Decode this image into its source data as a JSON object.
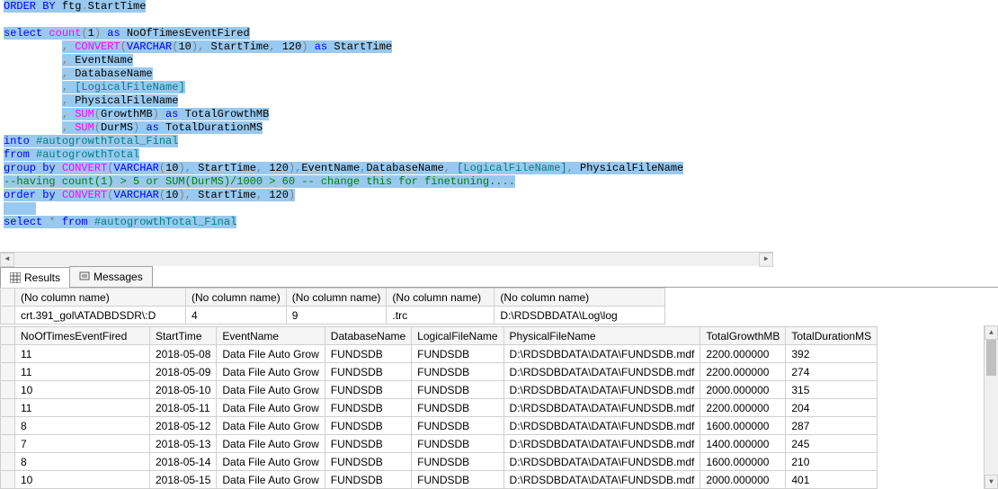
{
  "editor": {
    "lines": [
      {
        "segs": [
          {
            "t": "ORDER",
            "c": "kw-blue",
            "s": true
          },
          {
            "t": " ",
            "s": true
          },
          {
            "t": "BY",
            "c": "kw-blue",
            "s": true
          },
          {
            "t": " ftg",
            "s": true
          },
          {
            "t": ".",
            "c": "kw-gray",
            "s": true
          },
          {
            "t": "StartTime",
            "s": true
          }
        ]
      },
      {
        "segs": []
      },
      {
        "segs": [
          {
            "t": "select",
            "c": "kw-blue",
            "s": true
          },
          {
            "t": " ",
            "s": true
          },
          {
            "t": "count",
            "c": "kw-mag",
            "s": true
          },
          {
            "t": "(",
            "c": "kw-gray",
            "s": true
          },
          {
            "t": "1",
            "s": true
          },
          {
            "t": ")",
            "c": "kw-gray",
            "s": true
          },
          {
            "t": " ",
            "s": true
          },
          {
            "t": "as",
            "c": "kw-blue",
            "s": true
          },
          {
            "t": " NoOfTimesEventFired",
            "s": true
          }
        ]
      },
      {
        "segs": [
          {
            "t": "         ",
            "s": false
          },
          {
            "t": ",",
            "c": "kw-gray",
            "s": true
          },
          {
            "t": " ",
            "s": true
          },
          {
            "t": "CONVERT",
            "c": "kw-mag",
            "s": true
          },
          {
            "t": "(",
            "c": "kw-gray",
            "s": true
          },
          {
            "t": "VARCHAR",
            "c": "kw-blue",
            "s": true
          },
          {
            "t": "(",
            "c": "kw-gray",
            "s": true
          },
          {
            "t": "10",
            "s": true
          },
          {
            "t": "),",
            "c": "kw-gray",
            "s": true
          },
          {
            "t": " StartTime",
            "s": true
          },
          {
            "t": ",",
            "c": "kw-gray",
            "s": true
          },
          {
            "t": " 120",
            "s": true
          },
          {
            "t": ")",
            "c": "kw-gray",
            "s": true
          },
          {
            "t": " ",
            "s": true
          },
          {
            "t": "as",
            "c": "kw-blue",
            "s": true
          },
          {
            "t": " StartTime",
            "s": true
          }
        ]
      },
      {
        "segs": [
          {
            "t": "         ",
            "s": false
          },
          {
            "t": ",",
            "c": "kw-gray",
            "s": true
          },
          {
            "t": " EventName",
            "s": true
          }
        ]
      },
      {
        "segs": [
          {
            "t": "         ",
            "s": false
          },
          {
            "t": ",",
            "c": "kw-gray",
            "s": true
          },
          {
            "t": " DatabaseName",
            "s": true
          }
        ]
      },
      {
        "segs": [
          {
            "t": "         ",
            "s": false
          },
          {
            "t": ",",
            "c": "kw-gray",
            "s": true
          },
          {
            "t": " ",
            "s": true
          },
          {
            "t": "[LogicalFileName]",
            "c": "kw-teal",
            "s": true
          }
        ]
      },
      {
        "segs": [
          {
            "t": "         ",
            "s": false
          },
          {
            "t": ",",
            "c": "kw-gray",
            "s": true
          },
          {
            "t": " PhysicalFileName",
            "s": true
          }
        ]
      },
      {
        "segs": [
          {
            "t": "         ",
            "s": false
          },
          {
            "t": ",",
            "c": "kw-gray",
            "s": true
          },
          {
            "t": " ",
            "s": true
          },
          {
            "t": "SUM",
            "c": "kw-mag",
            "s": true
          },
          {
            "t": "(",
            "c": "kw-gray",
            "s": true
          },
          {
            "t": "GrowthMB",
            "s": true
          },
          {
            "t": ")",
            "c": "kw-gray",
            "s": true
          },
          {
            "t": " ",
            "s": true
          },
          {
            "t": "as",
            "c": "kw-blue",
            "s": true
          },
          {
            "t": " TotalGrowthMB",
            "s": true
          }
        ]
      },
      {
        "segs": [
          {
            "t": "         ",
            "s": false
          },
          {
            "t": ",",
            "c": "kw-gray",
            "s": true
          },
          {
            "t": " ",
            "s": true
          },
          {
            "t": "SUM",
            "c": "kw-mag",
            "s": true
          },
          {
            "t": "(",
            "c": "kw-gray",
            "s": true
          },
          {
            "t": "DurMS",
            "s": true
          },
          {
            "t": ")",
            "c": "kw-gray",
            "s": true
          },
          {
            "t": " ",
            "s": true
          },
          {
            "t": "as",
            "c": "kw-blue",
            "s": true
          },
          {
            "t": " TotalDurationMS",
            "s": true
          }
        ]
      },
      {
        "segs": [
          {
            "t": "into",
            "c": "kw-blue",
            "s": true
          },
          {
            "t": " ",
            "s": true
          },
          {
            "t": "#autogrowthTotal_Final",
            "c": "kw-teal",
            "s": true
          }
        ]
      },
      {
        "segs": [
          {
            "t": "from",
            "c": "kw-blue",
            "s": true
          },
          {
            "t": " ",
            "s": true
          },
          {
            "t": "#autogrowthTotal",
            "c": "kw-teal",
            "s": true
          }
        ]
      },
      {
        "segs": [
          {
            "t": "group",
            "c": "kw-blue",
            "s": true
          },
          {
            "t": " ",
            "s": true
          },
          {
            "t": "by",
            "c": "kw-blue",
            "s": true
          },
          {
            "t": " ",
            "s": true
          },
          {
            "t": "CONVERT",
            "c": "kw-mag",
            "s": true
          },
          {
            "t": "(",
            "c": "kw-gray",
            "s": true
          },
          {
            "t": "VARCHAR",
            "c": "kw-blue",
            "s": true
          },
          {
            "t": "(",
            "c": "kw-gray",
            "s": true
          },
          {
            "t": "10",
            "s": true
          },
          {
            "t": "),",
            "c": "kw-gray",
            "s": true
          },
          {
            "t": " StartTime",
            "s": true
          },
          {
            "t": ",",
            "c": "kw-gray",
            "s": true
          },
          {
            "t": " 120",
            "s": true
          },
          {
            "t": "),",
            "c": "kw-gray",
            "s": true
          },
          {
            "t": "EventName",
            "s": true
          },
          {
            "t": ",",
            "c": "kw-gray",
            "s": true
          },
          {
            "t": "DatabaseName",
            "s": true
          },
          {
            "t": ",",
            "c": "kw-gray",
            "s": true
          },
          {
            "t": " ",
            "s": true
          },
          {
            "t": "[LogicalFileName]",
            "c": "kw-teal",
            "s": true
          },
          {
            "t": ",",
            "c": "kw-gray",
            "s": true
          },
          {
            "t": " PhysicalFileName",
            "s": true
          }
        ]
      },
      {
        "segs": [
          {
            "t": "--having count(1) > 5 or SUM(DurMS)/1000 > 60 -- change this for finetuning....",
            "c": "kw-green",
            "s": true
          }
        ]
      },
      {
        "segs": [
          {
            "t": "order",
            "c": "kw-blue",
            "s": true
          },
          {
            "t": " ",
            "s": true
          },
          {
            "t": "by",
            "c": "kw-blue",
            "s": true
          },
          {
            "t": " ",
            "s": true
          },
          {
            "t": "CONVERT",
            "c": "kw-mag",
            "s": true
          },
          {
            "t": "(",
            "c": "kw-gray",
            "s": true
          },
          {
            "t": "VARCHAR",
            "c": "kw-blue",
            "s": true
          },
          {
            "t": "(",
            "c": "kw-gray",
            "s": true
          },
          {
            "t": "10",
            "s": true
          },
          {
            "t": "),",
            "c": "kw-gray",
            "s": true
          },
          {
            "t": " StartTime",
            "s": true
          },
          {
            "t": ",",
            "c": "kw-gray",
            "s": true
          },
          {
            "t": " 120",
            "s": true
          },
          {
            "t": ")",
            "c": "kw-gray",
            "s": true
          }
        ]
      },
      {
        "segs": [
          {
            "t": "     ",
            "s": true
          }
        ]
      },
      {
        "segs": [
          {
            "t": "select",
            "c": "kw-blue",
            "s": true
          },
          {
            "t": " ",
            "s": true
          },
          {
            "t": "*",
            "c": "kw-gray",
            "s": true
          },
          {
            "t": " ",
            "s": true
          },
          {
            "t": "from",
            "c": "kw-blue",
            "s": true
          },
          {
            "t": " ",
            "s": true
          },
          {
            "t": "#autogrowthTotal_Final",
            "c": "kw-teal",
            "s": true
          }
        ]
      }
    ]
  },
  "tabs": {
    "results": "Results",
    "messages": "Messages"
  },
  "grid1": {
    "headers": [
      "(No column name)",
      "(No column name)",
      "(No column name)",
      "(No column name)",
      "(No column name)"
    ],
    "widths": [
      190,
      100,
      70,
      120,
      190
    ],
    "row": [
      "crt.391_gol\\ATADBDSDR\\:D",
      "4",
      "9",
      ".trc",
      "D:\\RDSDBDATA\\Log\\log"
    ]
  },
  "grid2": {
    "headers": [
      "NoOfTimesEventFired",
      "StartTime",
      "EventName",
      "DatabaseName",
      "LogicalFileName",
      "PhysicalFileName",
      "TotalGrowthMB",
      "TotalDurationMS"
    ],
    "widths": [
      150,
      70,
      110,
      90,
      100,
      190,
      90,
      95
    ],
    "rows": [
      [
        "11",
        "2018-05-08",
        "Data File Auto Grow",
        "FUNDSDB",
        "FUNDSDB",
        "D:\\RDSDBDATA\\DATA\\FUNDSDB.mdf",
        "2200.000000",
        "392"
      ],
      [
        "11",
        "2018-05-09",
        "Data File Auto Grow",
        "FUNDSDB",
        "FUNDSDB",
        "D:\\RDSDBDATA\\DATA\\FUNDSDB.mdf",
        "2200.000000",
        "274"
      ],
      [
        "10",
        "2018-05-10",
        "Data File Auto Grow",
        "FUNDSDB",
        "FUNDSDB",
        "D:\\RDSDBDATA\\DATA\\FUNDSDB.mdf",
        "2000.000000",
        "315"
      ],
      [
        "11",
        "2018-05-11",
        "Data File Auto Grow",
        "FUNDSDB",
        "FUNDSDB",
        "D:\\RDSDBDATA\\DATA\\FUNDSDB.mdf",
        "2200.000000",
        "204"
      ],
      [
        "8",
        "2018-05-12",
        "Data File Auto Grow",
        "FUNDSDB",
        "FUNDSDB",
        "D:\\RDSDBDATA\\DATA\\FUNDSDB.mdf",
        "1600.000000",
        "287"
      ],
      [
        "7",
        "2018-05-13",
        "Data File Auto Grow",
        "FUNDSDB",
        "FUNDSDB",
        "D:\\RDSDBDATA\\DATA\\FUNDSDB.mdf",
        "1400.000000",
        "245"
      ],
      [
        "8",
        "2018-05-14",
        "Data File Auto Grow",
        "FUNDSDB",
        "FUNDSDB",
        "D:\\RDSDBDATA\\DATA\\FUNDSDB.mdf",
        "1600.000000",
        "210"
      ],
      [
        "10",
        "2018-05-15",
        "Data File Auto Grow",
        "FUNDSDB",
        "FUNDSDB",
        "D:\\RDSDBDATA\\DATA\\FUNDSDB.mdf",
        "2000.000000",
        "401"
      ]
    ]
  }
}
